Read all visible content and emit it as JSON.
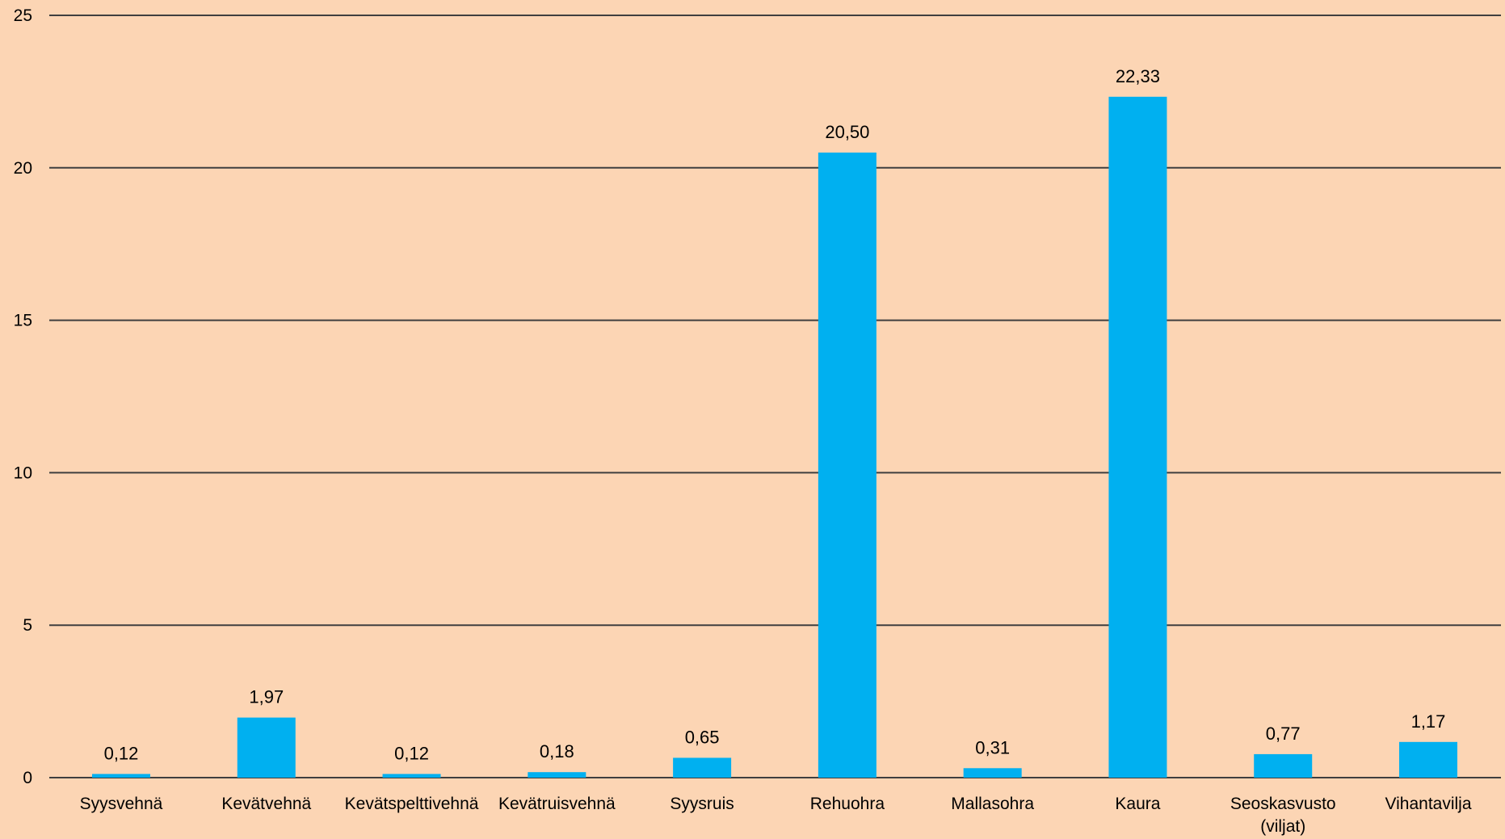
{
  "chart_data": {
    "type": "bar",
    "title": "",
    "xlabel": "",
    "ylabel": "",
    "ylim": [
      0,
      25
    ],
    "yticks": [
      0,
      5,
      10,
      15,
      20,
      25
    ],
    "grid": true,
    "legend": "none",
    "categories": [
      [
        "Syysvehnä"
      ],
      [
        "Kevätvehnä"
      ],
      [
        "Kevätspelttivehnä"
      ],
      [
        "Kevätruisvehnä"
      ],
      [
        "Syysruis"
      ],
      [
        "Rehuohra"
      ],
      [
        "Mallasohra"
      ],
      [
        "Kaura"
      ],
      [
        "Seoskasvusto",
        "(viljat)"
      ],
      [
        "Vihantavilja"
      ]
    ],
    "values": [
      0.12,
      1.97,
      0.12,
      0.18,
      0.65,
      20.5,
      0.31,
      22.33,
      0.77,
      1.17
    ],
    "value_labels": [
      "0,12",
      "1,97",
      "0,12",
      "0,18",
      "0,65",
      "20,50",
      "0,31",
      "22,33",
      "0,77",
      "1,17"
    ],
    "colors": {
      "background": "#fcd5b4",
      "bar": "#00b0f0",
      "grid": "#3f3f3f"
    }
  }
}
